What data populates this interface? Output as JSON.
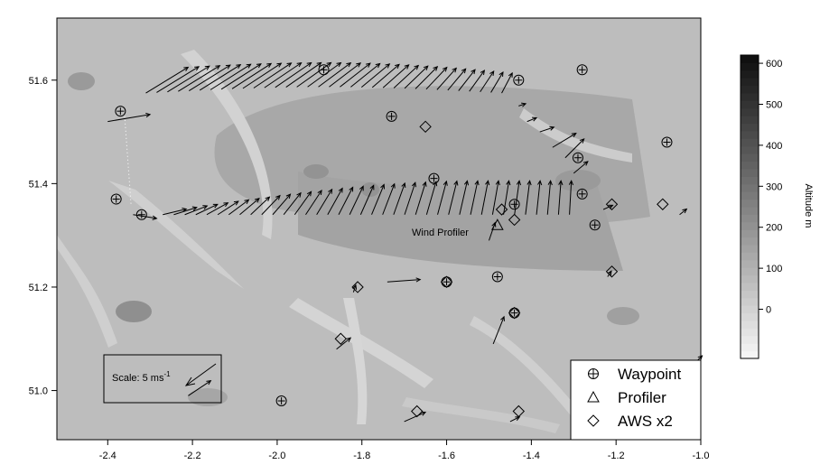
{
  "figure": {
    "colorbar": {
      "title": "Altitude m",
      "ticks": [
        "600",
        "500",
        "400",
        "300",
        "200",
        "100",
        "0"
      ],
      "levels": [
        0,
        50,
        100,
        150,
        200,
        250,
        300,
        350,
        400,
        450,
        500,
        550,
        600
      ]
    },
    "legend": {
      "position": "bottom-right",
      "items": [
        {
          "label": "Waypoint",
          "marker": "circle-plus"
        },
        {
          "label": "Profiler",
          "marker": "triangle"
        },
        {
          "label": "AWS x2",
          "marker": "diamond"
        }
      ]
    },
    "scale_box": {
      "label": "Scale: 5 ms",
      "superscript": "-1",
      "speed_ms": 5
    },
    "annotation": {
      "label": "Wind Profiler",
      "lon": -1.48,
      "lat": 51.33
    }
  },
  "chart_data": {
    "type": "scatter",
    "title": "",
    "xlabel": "",
    "ylabel": "",
    "xlim": [
      -2.5,
      -1.0
    ],
    "ylim": [
      50.9,
      51.72
    ],
    "grid": false,
    "x_ticks": [
      "-2.4",
      "-2.2",
      "-2.0",
      "-1.8",
      "-1.6",
      "-1.4",
      "-1.2",
      "-1.0"
    ],
    "y_ticks": [
      "51.0",
      "51.2",
      "51.4",
      "51.6"
    ],
    "waypoints": [
      [
        -2.37,
        51.54
      ],
      [
        -2.38,
        51.37
      ],
      [
        -2.32,
        51.34
      ],
      [
        -1.89,
        51.62
      ],
      [
        -1.73,
        51.53
      ],
      [
        -1.63,
        51.41
      ],
      [
        -1.43,
        51.6
      ],
      [
        -1.28,
        51.62
      ],
      [
        -1.08,
        51.48
      ],
      [
        -1.29,
        51.45
      ],
      [
        -1.28,
        51.38
      ],
      [
        -1.44,
        51.36
      ],
      [
        -1.25,
        51.32
      ],
      [
        -1.6,
        51.21
      ],
      [
        -1.48,
        51.22
      ],
      [
        -1.44,
        51.15
      ],
      [
        -1.99,
        50.98
      ]
    ],
    "profiler": [
      [
        -1.48,
        51.32
      ]
    ],
    "aws": [
      [
        -1.65,
        51.51
      ],
      [
        -1.47,
        51.35
      ],
      [
        -1.44,
        51.33
      ],
      [
        -1.21,
        51.36
      ],
      [
        -1.09,
        51.36
      ],
      [
        -1.81,
        51.2
      ],
      [
        -1.6,
        51.21
      ],
      [
        -1.21,
        51.23
      ],
      [
        -1.44,
        51.15
      ],
      [
        -1.85,
        51.1
      ],
      [
        -1.67,
        50.96
      ],
      [
        -1.43,
        50.96
      ]
    ],
    "wind_vectors_top": {
      "lon_start": -2.31,
      "lon_end": -1.47,
      "lat": 51.575,
      "count": 34,
      "u_ms": 9.0,
      "v_ms": 5.5
    },
    "wind_vectors_bottom": {
      "lon_start": -2.27,
      "lon_end": -1.31,
      "lat": 51.34,
      "count": 38,
      "u_ms": 1.8,
      "v_ms": 7.0
    },
    "wind_vectors_east_leg": [
      [
        -1.43,
        51.55,
        1.5,
        0.5
      ],
      [
        -1.41,
        51.52,
        2.0,
        0.8
      ],
      [
        -1.38,
        51.5,
        3.0,
        1.0
      ],
      [
        -1.35,
        51.47,
        5.0,
        3.0
      ],
      [
        -1.32,
        51.45,
        4.0,
        4.0
      ],
      [
        -1.3,
        51.42,
        3.0,
        2.5
      ]
    ],
    "wind_vectors_sites": [
      [
        -2.4,
        51.52,
        9.0,
        1.5
      ],
      [
        -2.34,
        51.34,
        5.0,
        -0.8
      ],
      [
        -1.74,
        51.21,
        7.0,
        0.5
      ],
      [
        -1.82,
        51.19,
        0.5,
        1.5
      ],
      [
        -1.86,
        51.08,
        3.0,
        2.4
      ],
      [
        -1.49,
        51.09,
        2.3,
        5.8
      ],
      [
        -1.7,
        50.94,
        4.5,
        2.0
      ],
      [
        -1.45,
        50.94,
        2.0,
        1.0
      ],
      [
        -1.22,
        51.22,
        0.8,
        1.2
      ],
      [
        -1.23,
        51.35,
        2.0,
        0.9
      ],
      [
        -1.05,
        51.34,
        1.5,
        1.2
      ],
      [
        -1.5,
        51.29,
        1.3,
        3.8
      ],
      [
        -1.03,
        51.04,
        3.0,
        3.0
      ],
      [
        -2.21,
        50.99,
        4.8,
        3.2
      ]
    ]
  }
}
